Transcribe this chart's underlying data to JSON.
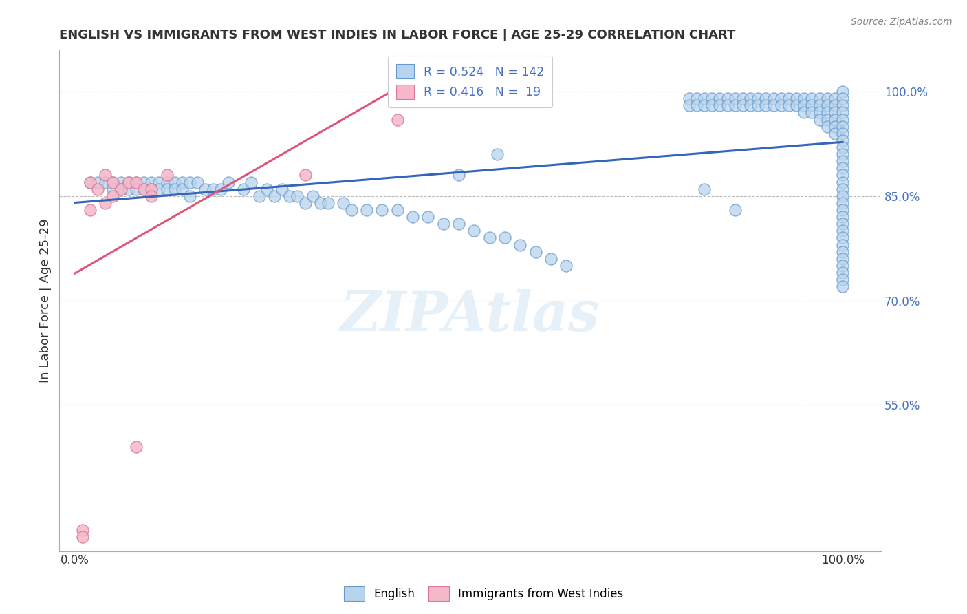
{
  "title": "ENGLISH VS IMMIGRANTS FROM WEST INDIES IN LABOR FORCE | AGE 25-29 CORRELATION CHART",
  "source": "Source: ZipAtlas.com",
  "ylabel": "In Labor Force | Age 25-29",
  "right_yticks": [
    0.55,
    0.7,
    0.85,
    1.0
  ],
  "right_yticklabels": [
    "55.0%",
    "70.0%",
    "85.0%",
    "100.0%"
  ],
  "xlim": [
    -0.02,
    1.05
  ],
  "ylim": [
    0.34,
    1.06
  ],
  "blue_R": 0.524,
  "blue_N": 142,
  "pink_R": 0.416,
  "pink_N": 19,
  "blue_color": "#b8d4ed",
  "blue_edge": "#6699cc",
  "blue_line_color": "#3366bb",
  "pink_color": "#f5b8c8",
  "pink_edge": "#dd7799",
  "pink_line_color": "#dd5577",
  "legend_label_blue": "English",
  "legend_label_pink": "Immigrants from West Indies",
  "watermark": "ZIPAtlas",
  "title_color": "#333333",
  "axis_label_color": "#333333",
  "right_tick_color": "#4472c4",
  "grid_color": "#bbbbbb",
  "background_color": "#ffffff",
  "blue_scatter_x": [
    0.02,
    0.03,
    0.04,
    0.05,
    0.05,
    0.06,
    0.06,
    0.07,
    0.07,
    0.08,
    0.08,
    0.09,
    0.09,
    0.1,
    0.1,
    0.11,
    0.11,
    0.12,
    0.12,
    0.13,
    0.13,
    0.14,
    0.14,
    0.15,
    0.15,
    0.16,
    0.17,
    0.18,
    0.19,
    0.2,
    0.22,
    0.23,
    0.24,
    0.25,
    0.26,
    0.27,
    0.28,
    0.29,
    0.3,
    0.31,
    0.32,
    0.33,
    0.35,
    0.36,
    0.38,
    0.4,
    0.42,
    0.44,
    0.46,
    0.48,
    0.5,
    0.52,
    0.54,
    0.56,
    0.58,
    0.6,
    0.62,
    0.64,
    0.5,
    0.55,
    0.82,
    0.86,
    0.8,
    0.8,
    0.81,
    0.81,
    0.82,
    0.82,
    0.83,
    0.83,
    0.84,
    0.84,
    0.85,
    0.85,
    0.86,
    0.86,
    0.87,
    0.87,
    0.88,
    0.88,
    0.89,
    0.89,
    0.9,
    0.9,
    0.91,
    0.91,
    0.92,
    0.92,
    0.93,
    0.93,
    0.94,
    0.94,
    0.95,
    0.95,
    0.95,
    0.96,
    0.96,
    0.96,
    0.97,
    0.97,
    0.97,
    0.97,
    0.98,
    0.98,
    0.98,
    0.98,
    0.98,
    0.99,
    0.99,
    0.99,
    0.99,
    0.99,
    0.99,
    1.0,
    1.0,
    1.0,
    1.0,
    1.0,
    1.0,
    1.0,
    1.0,
    1.0,
    1.0,
    1.0,
    1.0,
    1.0,
    1.0,
    1.0,
    1.0,
    1.0,
    1.0,
    1.0,
    1.0,
    1.0,
    1.0,
    1.0,
    1.0,
    1.0,
    1.0,
    1.0,
    1.0,
    1.0
  ],
  "blue_scatter_y": [
    0.87,
    0.87,
    0.87,
    0.87,
    0.86,
    0.87,
    0.86,
    0.87,
    0.86,
    0.87,
    0.86,
    0.87,
    0.86,
    0.87,
    0.86,
    0.87,
    0.86,
    0.87,
    0.86,
    0.87,
    0.86,
    0.87,
    0.86,
    0.87,
    0.85,
    0.87,
    0.86,
    0.86,
    0.86,
    0.87,
    0.86,
    0.87,
    0.85,
    0.86,
    0.85,
    0.86,
    0.85,
    0.85,
    0.84,
    0.85,
    0.84,
    0.84,
    0.84,
    0.83,
    0.83,
    0.83,
    0.83,
    0.82,
    0.82,
    0.81,
    0.81,
    0.8,
    0.79,
    0.79,
    0.78,
    0.77,
    0.76,
    0.75,
    0.88,
    0.91,
    0.86,
    0.83,
    0.99,
    0.98,
    0.99,
    0.98,
    0.99,
    0.98,
    0.99,
    0.98,
    0.99,
    0.98,
    0.99,
    0.98,
    0.99,
    0.98,
    0.99,
    0.98,
    0.99,
    0.98,
    0.99,
    0.98,
    0.99,
    0.98,
    0.99,
    0.98,
    0.99,
    0.98,
    0.99,
    0.98,
    0.99,
    0.98,
    0.99,
    0.98,
    0.97,
    0.99,
    0.98,
    0.97,
    0.99,
    0.98,
    0.97,
    0.96,
    0.99,
    0.98,
    0.97,
    0.96,
    0.95,
    0.99,
    0.98,
    0.97,
    0.96,
    0.95,
    0.94,
    1.0,
    0.99,
    0.98,
    0.97,
    0.96,
    0.95,
    0.94,
    0.93,
    0.92,
    0.91,
    0.9,
    0.89,
    0.88,
    0.87,
    0.86,
    0.85,
    0.84,
    0.83,
    0.82,
    0.81,
    0.8,
    0.79,
    0.78,
    0.77,
    0.76,
    0.75,
    0.74,
    0.73,
    0.72
  ],
  "pink_scatter_x": [
    0.01,
    0.01,
    0.02,
    0.02,
    0.03,
    0.04,
    0.04,
    0.05,
    0.06,
    0.07,
    0.08,
    0.09,
    0.1,
    0.1,
    0.12,
    0.08,
    0.42,
    0.3,
    0.05
  ],
  "pink_scatter_y": [
    0.37,
    0.36,
    0.87,
    0.83,
    0.86,
    0.88,
    0.84,
    0.87,
    0.86,
    0.87,
    0.87,
    0.86,
    0.86,
    0.85,
    0.88,
    0.49,
    0.96,
    0.88,
    0.85
  ]
}
